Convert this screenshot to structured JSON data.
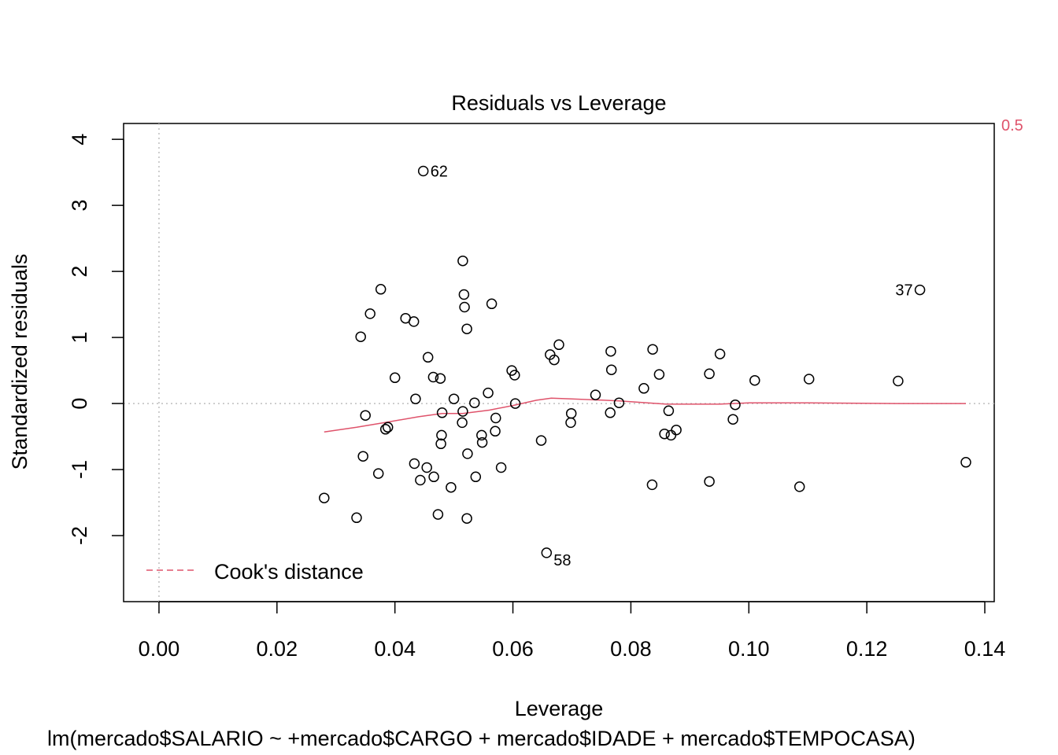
{
  "chart_data": {
    "type": "scatter",
    "title": "Residuals vs Leverage",
    "xlabel": "Leverage",
    "ylabel": "Standardized residuals",
    "subtitle": "lm(mercado$SALARIO ~ +mercado$CARGO + mercado$IDADE + mercado$TEMPOCASA)",
    "xlim": [
      -0.006,
      0.1416
    ],
    "ylim": [
      -3.0,
      4.24
    ],
    "x_ticks": [
      "0.00",
      "0.02",
      "0.04",
      "0.06",
      "0.08",
      "0.10",
      "0.12",
      "0.14"
    ],
    "y_ticks": [
      "-2",
      "-1",
      "0",
      "1",
      "2",
      "3",
      "4"
    ],
    "grid": false,
    "legend": {
      "position": "bottom-left",
      "label": "Cook's distance",
      "color": "#df536b",
      "style": "dashed"
    },
    "cook_contour_label": "0.5",
    "colors": {
      "points": "#000000",
      "smooth": "#df536b",
      "reference": "#bebebe",
      "cook": "#df536b"
    },
    "points": [
      {
        "x": 0.028,
        "y": -1.43
      },
      {
        "x": 0.0335,
        "y": -1.73
      },
      {
        "x": 0.0342,
        "y": 1.01
      },
      {
        "x": 0.0346,
        "y": -0.8
      },
      {
        "x": 0.035,
        "y": -0.18
      },
      {
        "x": 0.0358,
        "y": 1.36
      },
      {
        "x": 0.0372,
        "y": -1.06
      },
      {
        "x": 0.0376,
        "y": 1.73
      },
      {
        "x": 0.0384,
        "y": -0.39
      },
      {
        "x": 0.0388,
        "y": -0.36
      },
      {
        "x": 0.04,
        "y": 0.39
      },
      {
        "x": 0.0418,
        "y": 1.29
      },
      {
        "x": 0.0432,
        "y": 1.24
      },
      {
        "x": 0.0433,
        "y": -0.91
      },
      {
        "x": 0.0435,
        "y": 0.07
      },
      {
        "x": 0.0443,
        "y": -1.16
      },
      {
        "x": 0.0448,
        "y": 3.52
      },
      {
        "x": 0.0454,
        "y": -0.97
      },
      {
        "x": 0.0456,
        "y": 0.7
      },
      {
        "x": 0.0465,
        "y": 0.4
      },
      {
        "x": 0.0466,
        "y": -1.11
      },
      {
        "x": 0.0473,
        "y": -1.68
      },
      {
        "x": 0.0477,
        "y": 0.38
      },
      {
        "x": 0.0478,
        "y": -0.61
      },
      {
        "x": 0.0479,
        "y": -0.48
      },
      {
        "x": 0.048,
        "y": -0.14
      },
      {
        "x": 0.0495,
        "y": -1.27
      },
      {
        "x": 0.05,
        "y": 0.07
      },
      {
        "x": 0.0514,
        "y": -0.29
      },
      {
        "x": 0.0515,
        "y": -0.12
      },
      {
        "x": 0.0515,
        "y": 2.16
      },
      {
        "x": 0.0517,
        "y": 1.65
      },
      {
        "x": 0.0518,
        "y": 1.46
      },
      {
        "x": 0.0522,
        "y": 1.13
      },
      {
        "x": 0.0522,
        "y": -1.74
      },
      {
        "x": 0.0523,
        "y": -0.76
      },
      {
        "x": 0.0535,
        "y": 0.01
      },
      {
        "x": 0.0537,
        "y": -1.11
      },
      {
        "x": 0.0547,
        "y": -0.48
      },
      {
        "x": 0.0548,
        "y": -0.59
      },
      {
        "x": 0.0558,
        "y": 0.16
      },
      {
        "x": 0.0564,
        "y": 1.51
      },
      {
        "x": 0.057,
        "y": -0.42
      },
      {
        "x": 0.0571,
        "y": -0.22
      },
      {
        "x": 0.058,
        "y": -0.97
      },
      {
        "x": 0.0598,
        "y": 0.5
      },
      {
        "x": 0.0603,
        "y": 0.43
      },
      {
        "x": 0.0604,
        "y": 0.0
      },
      {
        "x": 0.0648,
        "y": -0.56
      },
      {
        "x": 0.0657,
        "y": -2.26
      },
      {
        "x": 0.0663,
        "y": 0.74
      },
      {
        "x": 0.067,
        "y": 0.66
      },
      {
        "x": 0.0678,
        "y": 0.89
      },
      {
        "x": 0.0698,
        "y": -0.29
      },
      {
        "x": 0.0699,
        "y": -0.15
      },
      {
        "x": 0.074,
        "y": 0.13
      },
      {
        "x": 0.0765,
        "y": -0.14
      },
      {
        "x": 0.0766,
        "y": 0.79
      },
      {
        "x": 0.0767,
        "y": 0.51
      },
      {
        "x": 0.078,
        "y": 0.01
      },
      {
        "x": 0.0822,
        "y": 0.23
      },
      {
        "x": 0.0836,
        "y": -1.23
      },
      {
        "x": 0.0837,
        "y": 0.82
      },
      {
        "x": 0.0848,
        "y": 0.44
      },
      {
        "x": 0.0857,
        "y": -0.46
      },
      {
        "x": 0.0864,
        "y": -0.11
      },
      {
        "x": 0.0868,
        "y": -0.48
      },
      {
        "x": 0.0877,
        "y": -0.4
      },
      {
        "x": 0.0933,
        "y": 0.45
      },
      {
        "x": 0.0933,
        "y": -1.18
      },
      {
        "x": 0.0951,
        "y": 0.75
      },
      {
        "x": 0.0973,
        "y": -0.24
      },
      {
        "x": 0.0977,
        "y": -0.02
      },
      {
        "x": 0.101,
        "y": 0.35
      },
      {
        "x": 0.1086,
        "y": -1.26
      },
      {
        "x": 0.1102,
        "y": 0.37
      },
      {
        "x": 0.1253,
        "y": 0.34
      },
      {
        "x": 0.129,
        "y": 1.72
      },
      {
        "x": 0.1368,
        "y": -0.89
      }
    ],
    "labeled_points": [
      {
        "label": "62",
        "x": 0.0448,
        "y": 3.52,
        "side": "right"
      },
      {
        "label": "37",
        "x": 0.129,
        "y": 1.72,
        "side": "left"
      },
      {
        "label": "58",
        "x": 0.0657,
        "y": -2.26,
        "side": "right"
      }
    ],
    "smooth_line": {
      "x": [
        0.028,
        0.0335,
        0.0388,
        0.044,
        0.048,
        0.0515,
        0.056,
        0.06,
        0.064,
        0.0665,
        0.07,
        0.078,
        0.086,
        0.095,
        0.1,
        0.11,
        0.125,
        0.1368
      ],
      "y": [
        -0.43,
        -0.36,
        -0.28,
        -0.2,
        -0.15,
        -0.15,
        -0.1,
        -0.03,
        0.05,
        0.08,
        0.07,
        0.04,
        -0.01,
        -0.01,
        0.01,
        0.01,
        0.0,
        0.0
      ]
    }
  }
}
